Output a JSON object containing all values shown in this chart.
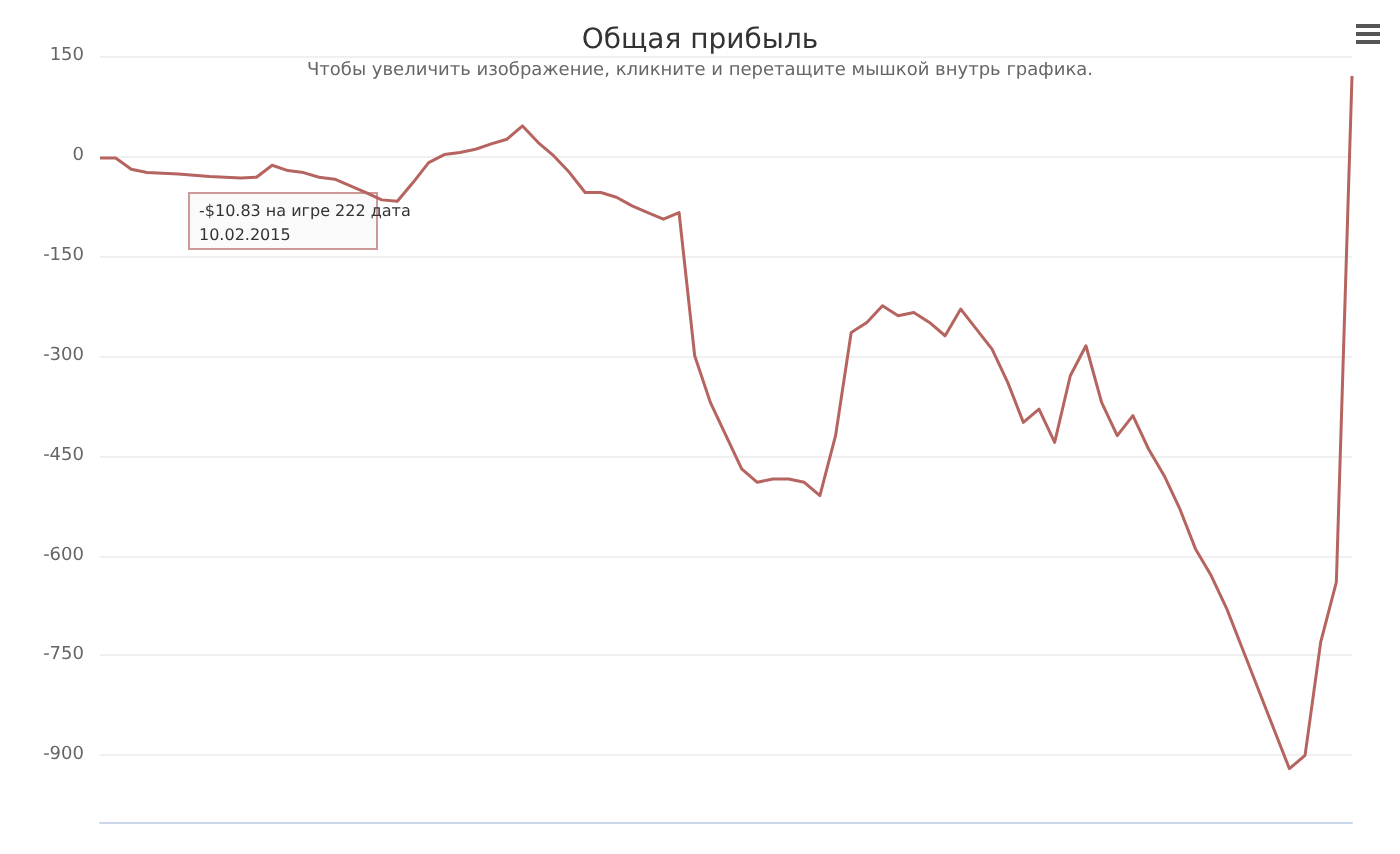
{
  "chart_data": {
    "type": "line",
    "title": "Общая прибыль",
    "subtitle": "Чтобы увеличить изображение, кликните и перетащите мышкой внутрь графика.",
    "annotations": [
      "-$10.83 на игре 222 дата\n10.02.2015"
    ],
    "categories": [
      null,
      null,
      null,
      null,
      null,
      null,
      null,
      null,
      null,
      null,
      null,
      null,
      null,
      null,
      null,
      null,
      null,
      null,
      null,
      null,
      null,
      null,
      null,
      null,
      null,
      null,
      null,
      null,
      null,
      null,
      null,
      null,
      null,
      null,
      null,
      null,
      null,
      null,
      null,
      null,
      null,
      null,
      null,
      null,
      null,
      null,
      null,
      null,
      null,
      null,
      null,
      null,
      null,
      null,
      null,
      null,
      null,
      null,
      null,
      null,
      null,
      null,
      null,
      null,
      null,
      null,
      null,
      null,
      null,
      null,
      null,
      null,
      null,
      null,
      null,
      null,
      null,
      null,
      null,
      null,
      null
    ],
    "series": [
      {
        "color": "#b5645f",
        "values": [
          -3,
          -3,
          -20,
          -25,
          -26,
          -27,
          -29,
          -31,
          -32,
          -33,
          -32,
          -14,
          -22,
          -25,
          -32,
          -35,
          -45,
          -55,
          -66,
          -68,
          -40,
          -10,
          2,
          5,
          10,
          18,
          25,
          45,
          20,
          0,
          -25,
          -55,
          -55,
          -62,
          -75,
          -85,
          -95,
          -85,
          -300,
          -370,
          -420,
          -470,
          -490,
          -485,
          -485,
          -490,
          -510,
          -420,
          -265,
          -250,
          -225,
          -240,
          -235,
          -250,
          -270,
          -230,
          -260,
          -290,
          -340,
          -400,
          -380,
          -430,
          -330,
          -285,
          -370,
          -420,
          -390,
          -440,
          -480,
          -530,
          -590,
          -630,
          -680,
          -740,
          -800,
          -860,
          -920,
          -900,
          -730,
          -640,
          120
        ]
      }
    ],
    "ylim": [
      -1000,
      150
    ],
    "yticks": [
      -900,
      -750,
      -600,
      -450,
      -300,
      -150,
      0,
      150
    ],
    "grid": "y",
    "marker": "none",
    "line_style": "solid"
  }
}
